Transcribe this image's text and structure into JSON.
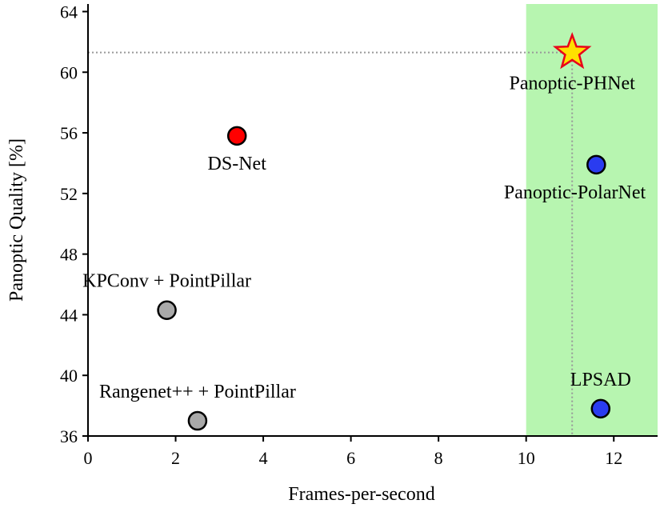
{
  "chart_data": {
    "type": "scatter",
    "title": "",
    "xlabel": "Frames-per-second",
    "ylabel": "Panoptic Quality [%]",
    "xlim": [
      0,
      13
    ],
    "ylim": [
      36,
      64.5
    ],
    "xticks": [
      0,
      2,
      4,
      6,
      8,
      10,
      12
    ],
    "yticks": [
      36,
      40,
      44,
      48,
      52,
      56,
      60,
      64
    ],
    "highlight_region": {
      "x_from": 10,
      "x_to": 13,
      "color": "#b7f5b0"
    },
    "reference_lines": {
      "x": 11.05,
      "y": 61.3,
      "color": "#999999"
    },
    "points": [
      {
        "name": "Panoptic-PHNet",
        "x": 11.05,
        "y": 61.3,
        "marker": "star",
        "color": "#ffe000",
        "edge": "#e8001a",
        "label_pos": "below"
      },
      {
        "name": "DS-Net",
        "x": 3.4,
        "y": 55.8,
        "marker": "circle",
        "color": "#ff0000",
        "edge": "#000000",
        "label_pos": "below"
      },
      {
        "name": "Panoptic-PolarNet",
        "x": 11.6,
        "y": 53.9,
        "marker": "circle",
        "color": "#2a3cf0",
        "edge": "#000000",
        "label_pos": "below"
      },
      {
        "name": "KPConv + PointPillar",
        "x": 1.8,
        "y": 44.3,
        "marker": "circle",
        "color": "#a9a9a9",
        "edge": "#000000",
        "label_pos": "above"
      },
      {
        "name": "Rangenet++ + PointPillar",
        "x": 2.5,
        "y": 37.0,
        "marker": "circle",
        "color": "#a9a9a9",
        "edge": "#000000",
        "label_pos": "above"
      },
      {
        "name": "LPSAD",
        "x": 11.7,
        "y": 37.8,
        "marker": "circle",
        "color": "#2a3cf0",
        "edge": "#000000",
        "label_pos": "above"
      }
    ]
  }
}
